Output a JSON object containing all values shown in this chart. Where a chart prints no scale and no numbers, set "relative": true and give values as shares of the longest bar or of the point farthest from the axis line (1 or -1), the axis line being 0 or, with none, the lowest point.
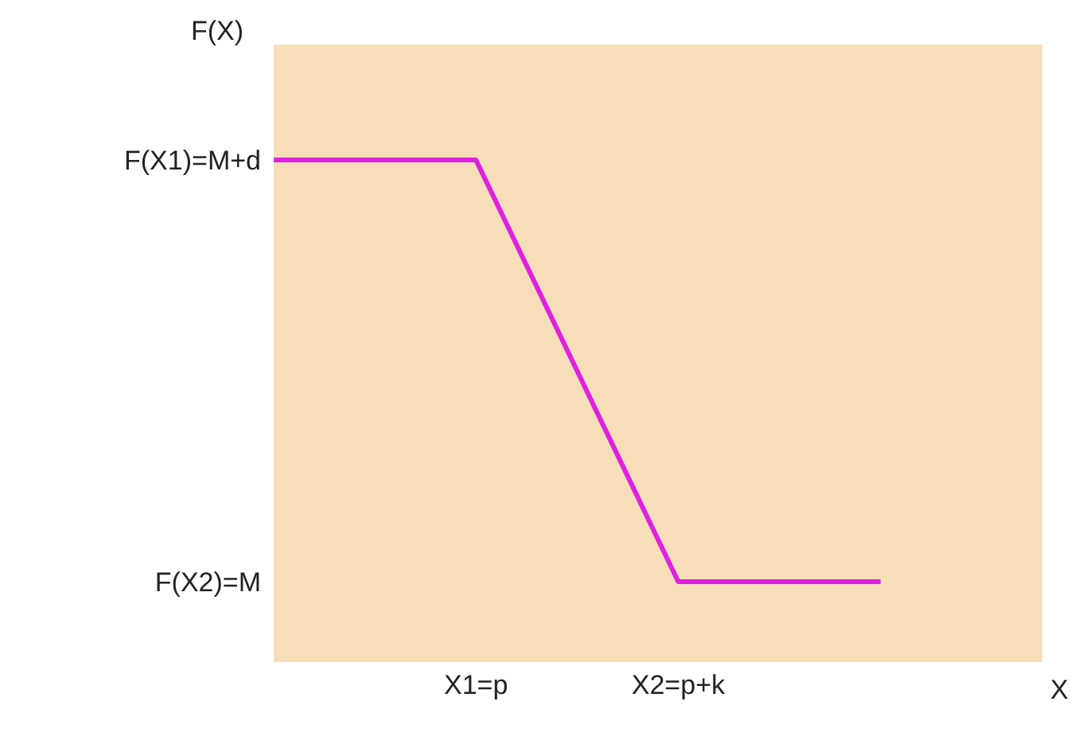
{
  "chart_data": {
    "type": "line",
    "relative": true,
    "xlabel": "X",
    "ylabel": "F(X)",
    "categories": [
      null,
      "X1=p",
      "X2=p+k",
      null
    ],
    "series": [
      {
        "color": "#e020e0",
        "values": [
          1,
          1,
          0.16,
          0.16
        ]
      }
    ],
    "annotations": [
      "F(X1)=M+d",
      "F(X2)=M"
    ],
    "marker": "none"
  }
}
